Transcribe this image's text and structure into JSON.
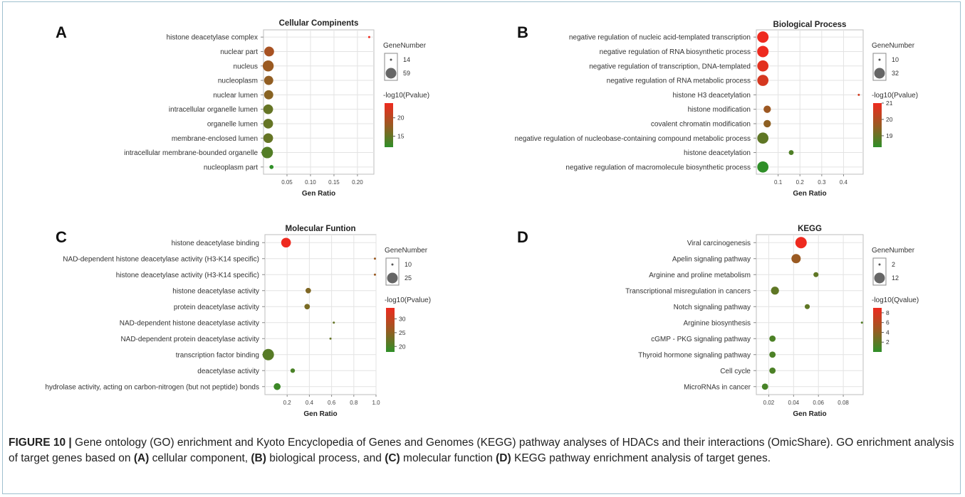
{
  "figure": {
    "caption_label": "FIGURE 10 |",
    "caption_segments": [
      {
        "text": " Gene ontology (GO) enrichment and Kyoto Encyclopedia of Genes and Genomes (KEGG) pathway analyses of HDACs and their interactions (OmicShare). GO enrichment analysis of target genes based on ",
        "bold": false
      },
      {
        "text": "(A)",
        "bold": true
      },
      {
        "text": " cellular component, ",
        "bold": false
      },
      {
        "text": "(B)",
        "bold": true
      },
      {
        "text": " biological process, and ",
        "bold": false
      },
      {
        "text": "(C)",
        "bold": true
      },
      {
        "text": " molecular function ",
        "bold": false
      },
      {
        "text": "(D)",
        "bold": true
      },
      {
        "text": " KEGG pathway enrichment analysis of target genes.",
        "bold": false
      }
    ]
  },
  "colors": {
    "high": "#ee2a1f",
    "mid": "#9a5a22",
    "low": "#2f8f28"
  },
  "chart_data": [
    {
      "panel": "A",
      "type": "scatter",
      "title": "Cellular Compinents",
      "xlabel": "Gen Ratio",
      "xticks": [
        "0.05",
        "0.10",
        "0.15",
        "0.20"
      ],
      "xlim": [
        0,
        0.235
      ],
      "size_legend_title": "GeneNumber",
      "size_legend": [
        14,
        59
      ],
      "color_legend_title": "-log10(Pvalue)",
      "color_ticks": [
        "20",
        "15"
      ],
      "color_range": [
        12,
        24
      ],
      "categories": [
        "histone deacetylase complex",
        "nuclear part",
        "nucleus",
        "nucleoplasm",
        "nuclear lumen",
        "intracellular organelle lumen",
        "organelle lumen",
        "membrane-enclosed lumen",
        "intracellular membrane-bounded organelle",
        "nucleoplasm part"
      ],
      "x": [
        0.225,
        0.012,
        0.01,
        0.011,
        0.011,
        0.01,
        0.01,
        0.01,
        0.008,
        0.017
      ],
      "gene_number": [
        14,
        45,
        55,
        40,
        40,
        44,
        44,
        44,
        59,
        16
      ],
      "color_value": [
        24,
        19,
        18,
        17.5,
        17,
        15,
        15,
        15,
        14,
        12
      ]
    },
    {
      "panel": "B",
      "type": "scatter",
      "title": "Biological Process",
      "xlabel": "Gen Ratio",
      "xticks": [
        "0.1",
        "0.2",
        "0.3",
        "0.4"
      ],
      "xlim": [
        0,
        0.49
      ],
      "size_legend_title": "GeneNumber",
      "size_legend": [
        10,
        32
      ],
      "color_legend_title": "-log10(Pvalue)",
      "color_ticks": [
        "21",
        "20",
        "19"
      ],
      "color_range": [
        18.3,
        21
      ],
      "categories": [
        "negative regulation of nucleic acid-templated transcription",
        "negative regulation of RNA biosynthetic process",
        "negative regulation of transcription, DNA-templated",
        "negative regulation of RNA metabolic process",
        "histone H3 deacetylation",
        "histone modification",
        "covalent chromatin modification",
        "negative regulation of nucleobase-containing compound metabolic process",
        "histone deacetylation",
        "negative regulation of macromolecule biosynthetic process"
      ],
      "x": [
        0.03,
        0.03,
        0.03,
        0.03,
        0.47,
        0.05,
        0.05,
        0.03,
        0.16,
        0.03
      ],
      "gene_number": [
        32,
        32,
        31,
        31,
        10,
        17,
        17,
        31,
        12,
        31
      ],
      "color_value": [
        21,
        21,
        20.8,
        20.6,
        20.5,
        19.7,
        19.5,
        18.9,
        18.7,
        18.3
      ]
    },
    {
      "panel": "C",
      "type": "scatter",
      "title": "Molecular Funtion",
      "xlabel": "Gen Ratio",
      "xticks": [
        "0.2",
        "0.4",
        "0.6",
        "0.8",
        "1.0"
      ],
      "xlim": [
        0,
        1.0
      ],
      "size_legend_title": "GeneNumber",
      "size_legend": [
        10,
        25
      ],
      "color_legend_title": "-log10(Pvalue)",
      "color_ticks": [
        "30",
        "25",
        "20"
      ],
      "color_range": [
        18,
        34
      ],
      "categories": [
        "histone deacetylase binding",
        "NAD-dependent histone deacetylase activity (H3-K14 specific)",
        "histone deacetylase activity (H3-K14 specific)",
        "histone deacetylase activity",
        "protein deacetylase activity",
        "NAD-dependent histone deacetylase activity",
        "NAD-dependent protein deacetylase activity",
        "transcription factor binding",
        "deacetylase activity",
        "hydrolase activity, acting on carbon-nitrogen (but not peptide) bonds"
      ],
      "x": [
        0.19,
        0.99,
        0.99,
        0.39,
        0.38,
        0.62,
        0.59,
        0.03,
        0.25,
        0.11
      ],
      "gene_number": [
        20,
        10,
        10,
        12,
        12,
        10,
        10,
        25,
        11,
        14
      ],
      "color_value": [
        34,
        26,
        26,
        24,
        23.5,
        22,
        22,
        21,
        20,
        19
      ]
    },
    {
      "panel": "D",
      "type": "scatter",
      "title": "KEGG",
      "xlabel": "Gen Ratio",
      "xticks": [
        "0.02",
        "0.04",
        "0.06",
        "0.08"
      ],
      "xlim": [
        0.01,
        0.096
      ],
      "size_legend_title": "GeneNumber",
      "size_legend": [
        2,
        12
      ],
      "color_legend_title": "-log10(Qvalue)",
      "color_ticks": [
        "8",
        "6",
        "4",
        "2"
      ],
      "color_range": [
        0,
        9
      ],
      "categories": [
        "Viral carcinogenesis",
        "Apelin signaling pathway",
        "Arginine and proline metabolism",
        "Transcriptional misregulation in cancers",
        "Notch signaling pathway",
        "Arginine biosynthesis",
        "cGMP - PKG signaling pathway",
        "Thyroid hormone signaling pathway",
        "Cell cycle",
        "MicroRNAs in cancer"
      ],
      "x": [
        0.046,
        0.042,
        0.058,
        0.025,
        0.051,
        0.095,
        0.023,
        0.023,
        0.023,
        0.017
      ],
      "gene_number": [
        12,
        8,
        3,
        6,
        3,
        2,
        4,
        4,
        4,
        4
      ],
      "color_value": [
        9,
        4.5,
        2,
        2,
        2,
        1.5,
        1.2,
        1.2,
        1.2,
        1
      ]
    }
  ]
}
